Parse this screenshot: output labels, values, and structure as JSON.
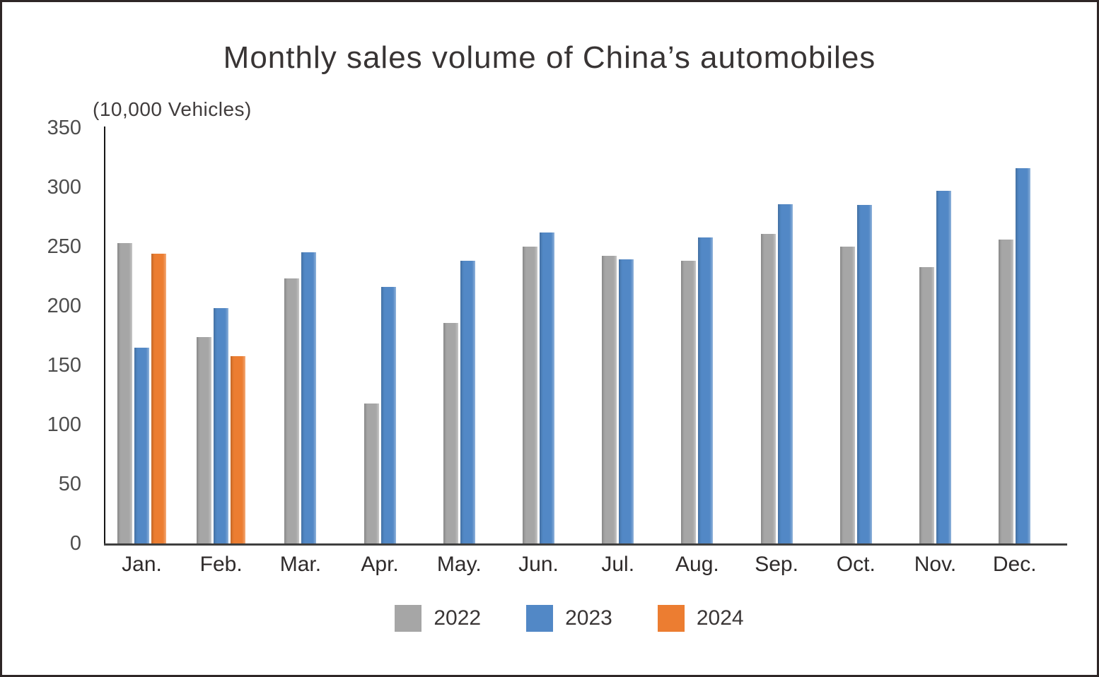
{
  "chart": {
    "title": "Monthly sales volume of China’s automobiles",
    "unit_label": "(10,000 Vehicles)"
  },
  "chart_data": {
    "type": "bar",
    "title": "Monthly sales volume of China’s automobiles",
    "ylabel": "(10,000 Vehicles)",
    "xlabel": "",
    "categories": [
      "Jan.",
      "Feb.",
      "Mar.",
      "Apr.",
      "May.",
      "Jun.",
      "Jul.",
      "Aug.",
      "Sep.",
      "Oct.",
      "Nov.",
      "Dec."
    ],
    "series": [
      {
        "name": "2022",
        "color": "#a6a6a6",
        "values": [
          253,
          174,
          223,
          118,
          186,
          250,
          242,
          238,
          261,
          250,
          233,
          256
        ]
      },
      {
        "name": "2023",
        "color": "#5288c6",
        "values": [
          165,
          198,
          245,
          216,
          238,
          262,
          239,
          258,
          286,
          285,
          297,
          316
        ]
      },
      {
        "name": "2024",
        "color": "#ec7d31",
        "values": [
          244,
          158,
          null,
          null,
          null,
          null,
          null,
          null,
          null,
          null,
          null,
          null
        ]
      }
    ],
    "ylim": [
      0,
      350
    ],
    "y_ticks": [
      0,
      50,
      100,
      150,
      200,
      250,
      300,
      350
    ],
    "grid": false,
    "legend_position": "bottom"
  }
}
